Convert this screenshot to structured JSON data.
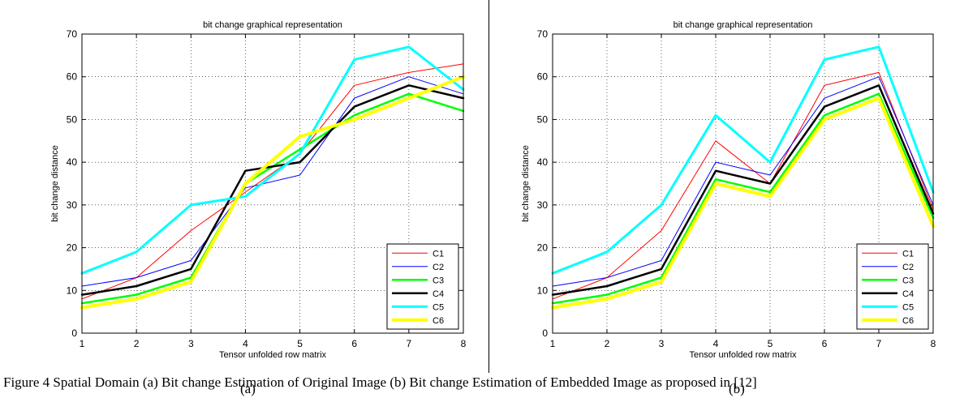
{
  "caption": {
    "full": "Figure 4 Spatial Domain (a) Bit change Estimation of Original Image (b) Bit change Estimation of Embedded Image as proposed in [12]",
    "sub_a": "(a)",
    "sub_b": "(b)"
  },
  "chart_data": [
    {
      "type": "line",
      "title": "bit change graphical representation",
      "xlabel": "Tensor unfolded row matrix",
      "ylabel": "bit change distance",
      "xlim": [
        1,
        8
      ],
      "ylim": [
        0,
        70
      ],
      "xticks": [
        1,
        2,
        3,
        4,
        5,
        6,
        7,
        8
      ],
      "yticks": [
        0,
        10,
        20,
        30,
        40,
        50,
        60,
        70
      ],
      "grid": true,
      "legend": "bottom-right",
      "x": [
        1,
        2,
        3,
        4,
        5,
        6,
        7,
        8
      ],
      "series": [
        {
          "name": "C1",
          "color": "#ff0000",
          "width": 1,
          "values": [
            8,
            13,
            24,
            33,
            42,
            58,
            61,
            63
          ]
        },
        {
          "name": "C2",
          "color": "#0000ff",
          "width": 1,
          "values": [
            11,
            13,
            17,
            34,
            37,
            55,
            60,
            56
          ]
        },
        {
          "name": "C3",
          "color": "#00ff00",
          "width": 2.5,
          "values": [
            7,
            9,
            13,
            35,
            43,
            51,
            56,
            52
          ]
        },
        {
          "name": "C4",
          "color": "#000000",
          "width": 2.5,
          "values": [
            9,
            11,
            15,
            38,
            40,
            53,
            58,
            55
          ]
        },
        {
          "name": "C5",
          "color": "#00ffff",
          "width": 3,
          "values": [
            14,
            19,
            30,
            32,
            42,
            64,
            67,
            57
          ]
        },
        {
          "name": "C6",
          "color": "#ffff00",
          "width": 4,
          "values": [
            6,
            8,
            12,
            35,
            46,
            50,
            55,
            60
          ]
        }
      ]
    },
    {
      "type": "line",
      "title": "bit change graphical representation",
      "xlabel": "Tensor unfolded row matrix",
      "ylabel": "bit change distance",
      "xlim": [
        1,
        8
      ],
      "ylim": [
        0,
        70
      ],
      "xticks": [
        1,
        2,
        3,
        4,
        5,
        6,
        7,
        8
      ],
      "yticks": [
        0,
        10,
        20,
        30,
        40,
        50,
        60,
        70
      ],
      "grid": true,
      "legend": "bottom-right",
      "x": [
        1,
        2,
        3,
        4,
        5,
        6,
        7,
        8
      ],
      "series": [
        {
          "name": "C1",
          "color": "#ff0000",
          "width": 1,
          "values": [
            8,
            13,
            24,
            45,
            35,
            58,
            61,
            29
          ]
        },
        {
          "name": "C2",
          "color": "#0000ff",
          "width": 1,
          "values": [
            11,
            13,
            17,
            40,
            37,
            55,
            60,
            30
          ]
        },
        {
          "name": "C3",
          "color": "#00ff00",
          "width": 2.5,
          "values": [
            7,
            9,
            13,
            36,
            33,
            51,
            56,
            27
          ]
        },
        {
          "name": "C4",
          "color": "#000000",
          "width": 2.5,
          "values": [
            9,
            11,
            15,
            38,
            35,
            53,
            58,
            28
          ]
        },
        {
          "name": "C5",
          "color": "#00ffff",
          "width": 3,
          "values": [
            14,
            19,
            30,
            51,
            40,
            64,
            67,
            33
          ]
        },
        {
          "name": "C6",
          "color": "#ffff00",
          "width": 4,
          "values": [
            6,
            8,
            12,
            35,
            32,
            50,
            55,
            25
          ]
        }
      ]
    }
  ]
}
